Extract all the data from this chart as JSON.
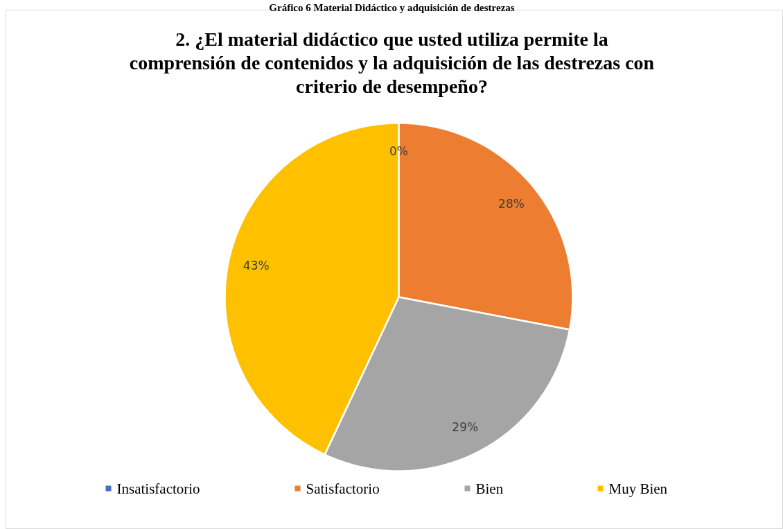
{
  "chart_data": {
    "type": "pie",
    "title": "2. ¿El material didáctico que usted utiliza permite la\ncomprensión de contenidos y la adquisición de las destrezas con\ncriterio de desempeño?",
    "annotations": [
      "Gráfico 6 Material Didáctico y adquisición de destrezas"
    ],
    "categories": [
      "Insatisfactorio",
      "Satisfactorio",
      "Bien",
      "Muy Bien"
    ],
    "values": [
      0,
      28,
      29,
      43
    ],
    "colors": [
      "#4472c4",
      "#ed7d31",
      "#a5a5a5",
      "#ffc000"
    ],
    "value_labels": [
      "0%",
      "28%",
      "29%",
      "43%"
    ],
    "legend": "bottom"
  }
}
